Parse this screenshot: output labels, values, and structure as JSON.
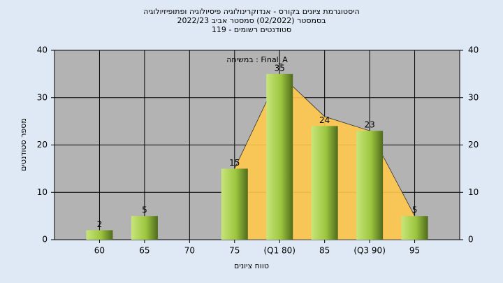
{
  "chart_data": {
    "type": "bar",
    "title": [
      "היסטוגרמת ציונים בקורס - אנדוקרינולוגיה פיסיולוגיה ופתופיזיולוגיה",
      "בסמסטר  (02/2022)  סמסטר אביב 2022/23",
      "סטודנטים רשומים - 119"
    ],
    "annotation": "במשיחה : Final_A",
    "x_label": "טווח ציונים",
    "y_label": "מספר סטודנטים",
    "categories": [
      "60",
      "65",
      "70",
      "75",
      "(Q1 80)",
      "85",
      "(Q3 90)",
      "95"
    ],
    "series": [
      {
        "values": [
          2,
          5,
          null,
          15,
          35,
          24,
          23,
          5
        ],
        "color": "#9cc63f"
      }
    ],
    "curve": {
      "values": [
        null,
        null,
        null,
        15,
        35,
        26,
        23,
        5
      ],
      "color": "#ffc64d"
    },
    "ylim": [
      0,
      40
    ],
    "yticks": [
      0,
      10,
      20,
      30,
      40
    ],
    "y2lim": [
      0,
      40
    ],
    "y2ticks": [
      0,
      10,
      20,
      30,
      40
    ],
    "grid": true
  }
}
